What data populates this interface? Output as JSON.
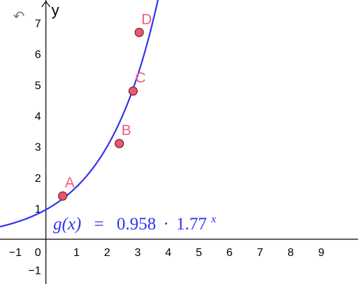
{
  "toolbar": {
    "undo_icon": "undo-icon",
    "undo_glyph": "↶"
  },
  "colors": {
    "curve": "#3333ee",
    "points_fill": "#e05a72",
    "points_stroke": "#7a1d2e",
    "point_labels": "#f05a7e",
    "axes": "#000000"
  },
  "chart_data": {
    "type": "scatter",
    "xlabel": "",
    "ylabel": "y",
    "xlim": [
      -1.5,
      10.2
    ],
    "ylim": [
      -1.45,
      7.75
    ],
    "grid": false,
    "x_ticks": [
      "−1",
      "1",
      "2",
      "3",
      "4",
      "5",
      "6",
      "7",
      "8",
      "9"
    ],
    "y_ticks": [
      "−1",
      "1",
      "2",
      "3",
      "4",
      "5",
      "6",
      "7"
    ],
    "origin_label": "0",
    "points": [
      {
        "label": "A",
        "x": 0.55,
        "y": 1.4
      },
      {
        "label": "B",
        "x": 2.4,
        "y": 3.1
      },
      {
        "label": "C",
        "x": 2.85,
        "y": 4.8
      },
      {
        "label": "D",
        "x": 3.05,
        "y": 6.7
      }
    ],
    "curve": {
      "name": "g",
      "a": 0.958,
      "b": 1.77
    },
    "formula": {
      "lhs": "g(x)",
      "eq": "=",
      "coef": "0.958",
      "dot": "·",
      "base": "1.77",
      "exponent": "x"
    }
  }
}
